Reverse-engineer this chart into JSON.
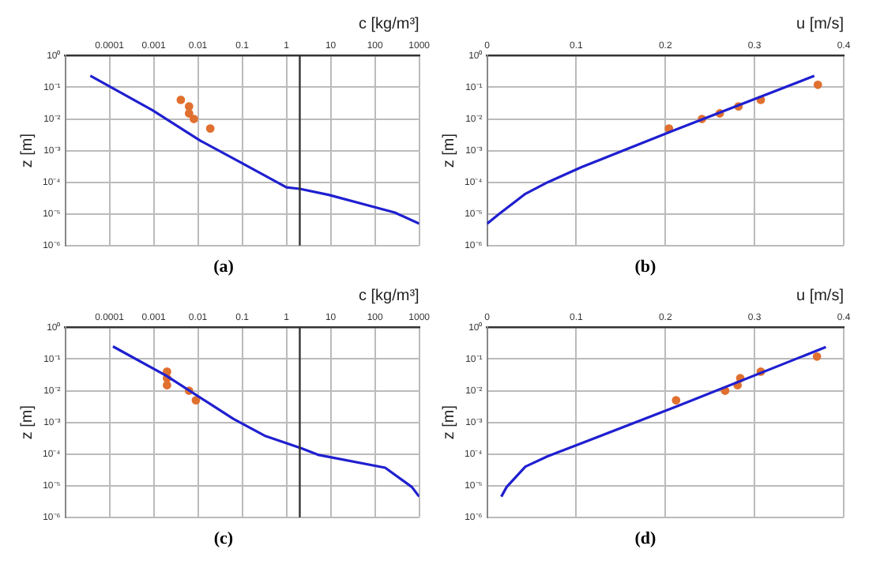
{
  "chart_data": [
    {
      "type": "line",
      "title": "(a)",
      "xlabel": "c [kg/m³]",
      "ylabel": "z [m]",
      "log": "xy",
      "grid": true,
      "legend": false,
      "xlim": [
        1e-05,
        1000
      ],
      "xticks": [
        0.0001,
        0.001,
        0.01,
        0.1,
        1,
        10,
        100,
        1000
      ],
      "ylim": [
        1e-06,
        1
      ],
      "yticks": [
        {
          "value": 1,
          "label": "10⁰"
        },
        {
          "value": 0.1,
          "label": "10⁻¹"
        },
        {
          "value": 0.01,
          "label": "10⁻²"
        },
        {
          "value": 0.001,
          "label": "10⁻³"
        },
        {
          "value": 0.0001,
          "label": "10⁻⁴"
        },
        {
          "value": 1e-05,
          "label": "10⁻⁵"
        },
        {
          "value": 1e-06,
          "label": "10⁻⁶"
        }
      ],
      "ref_lines": [
        {
          "axis": "x",
          "value": 2,
          "color": "#333333"
        }
      ],
      "series": [
        {
          "color": "#1f1fd0",
          "x": [
            3.7e-05,
            0.00093,
            0.011,
            0.1,
            1,
            2,
            9,
            280,
            1000
          ],
          "values": [
            0.23,
            0.019,
            0.0021,
            0.0004,
            6.9e-05,
            6.2e-05,
            4e-05,
            1.1e-05,
            4.9e-06
          ]
        },
        {
          "type": "scatter",
          "marker": "circle",
          "color": "#e07030",
          "x": [
            0.0041,
            0.0063,
            0.0063,
            0.0081,
            0.019
          ],
          "values": [
            0.04,
            0.025,
            0.015,
            0.01,
            0.005
          ]
        }
      ]
    },
    {
      "type": "line",
      "title": "(b)",
      "xlabel": "u [m/s]",
      "ylabel": "z [m]",
      "log": "y",
      "grid": true,
      "legend": false,
      "xlim": [
        0,
        0.4
      ],
      "xticks": [
        0,
        0.1,
        0.2,
        0.3,
        0.4
      ],
      "ylim": [
        1e-06,
        1
      ],
      "yticks": [
        {
          "value": 1,
          "label": "10⁰"
        },
        {
          "value": 0.1,
          "label": "10⁻¹"
        },
        {
          "value": 0.01,
          "label": "10⁻²"
        },
        {
          "value": 0.001,
          "label": "10⁻³"
        },
        {
          "value": 0.0001,
          "label": "10⁻⁴"
        },
        {
          "value": 1e-05,
          "label": "10⁻⁵"
        },
        {
          "value": 1e-06,
          "label": "10⁻⁶"
        }
      ],
      "series": [
        {
          "color": "#1f1fd0",
          "x": [
            0,
            0.0136,
            0.043,
            0.068,
            0.106,
            0.209,
            0.367
          ],
          "values": [
            4.9e-06,
            1e-05,
            4.3e-05,
            0.0001,
            0.0003,
            0.0043,
            0.23
          ]
        },
        {
          "type": "scatter",
          "marker": "circle",
          "color": "#e07030",
          "x": [
            0.204,
            0.241,
            0.261,
            0.282,
            0.307,
            0.371
          ],
          "values": [
            0.005,
            0.01,
            0.015,
            0.025,
            0.04,
            0.12
          ]
        }
      ]
    },
    {
      "type": "line",
      "title": "(c)",
      "xlabel": "c [kg/m³]",
      "ylabel": "z [m]",
      "log": "xy",
      "grid": true,
      "legend": false,
      "xlim": [
        1e-05,
        1000
      ],
      "xticks": [
        0.0001,
        0.001,
        0.01,
        0.1,
        1,
        10,
        100,
        1000
      ],
      "ylim": [
        1e-06,
        1
      ],
      "yticks": [
        {
          "value": 1,
          "label": "10⁰"
        },
        {
          "value": 0.1,
          "label": "10⁻¹"
        },
        {
          "value": 0.01,
          "label": "10⁻²"
        },
        {
          "value": 0.001,
          "label": "10⁻³"
        },
        {
          "value": 0.0001,
          "label": "10⁻⁴"
        },
        {
          "value": 1e-05,
          "label": "10⁻⁵"
        },
        {
          "value": 1e-06,
          "label": "10⁻⁶"
        }
      ],
      "ref_lines": [
        {
          "axis": "x",
          "value": 2,
          "color": "#333333"
        }
      ],
      "series": [
        {
          "color": "#1f1fd0",
          "x": [
            0.00012,
            0.0019,
            0.063,
            0.32,
            2.2,
            5.4,
            170,
            680,
            1000
          ],
          "values": [
            0.25,
            0.03,
            0.0013,
            0.00038,
            0.00015,
            9.3e-05,
            3.7e-05,
            9.1e-06,
            4.5e-06
          ]
        },
        {
          "type": "scatter",
          "marker": "circle",
          "color": "#e07030",
          "x": [
            0.002,
            0.002,
            0.002,
            0.0063,
            0.009
          ],
          "values": [
            0.04,
            0.025,
            0.015,
            0.01,
            0.005
          ]
        }
      ]
    },
    {
      "type": "line",
      "title": "(d)",
      "xlabel": "u [m/s]",
      "ylabel": "z [m]",
      "log": "y",
      "grid": true,
      "legend": false,
      "xlim": [
        0,
        0.4
      ],
      "xticks": [
        0,
        0.1,
        0.2,
        0.3,
        0.4
      ],
      "ylim": [
        1e-06,
        1
      ],
      "yticks": [
        {
          "value": 1,
          "label": "10⁰"
        },
        {
          "value": 0.1,
          "label": "10⁻¹"
        },
        {
          "value": 0.01,
          "label": "10⁻²"
        },
        {
          "value": 0.001,
          "label": "10⁻³"
        },
        {
          "value": 0.0001,
          "label": "10⁻⁴"
        },
        {
          "value": 1e-05,
          "label": "10⁻⁵"
        },
        {
          "value": 1e-06,
          "label": "10⁻⁶"
        }
      ],
      "series": [
        {
          "color": "#1f1fd0",
          "x": [
            0.016,
            0.022,
            0.043,
            0.068,
            0.106,
            0.209,
            0.38
          ],
          "values": [
            4.5e-06,
            9.1e-06,
            4e-05,
            8.5e-05,
            0.00022,
            0.0029,
            0.24
          ]
        },
        {
          "type": "scatter",
          "marker": "circle",
          "color": "#e07030",
          "x": [
            0.212,
            0.267,
            0.281,
            0.284,
            0.307,
            0.37
          ],
          "values": [
            0.005,
            0.01,
            0.015,
            0.025,
            0.04,
            0.12
          ]
        }
      ]
    }
  ]
}
